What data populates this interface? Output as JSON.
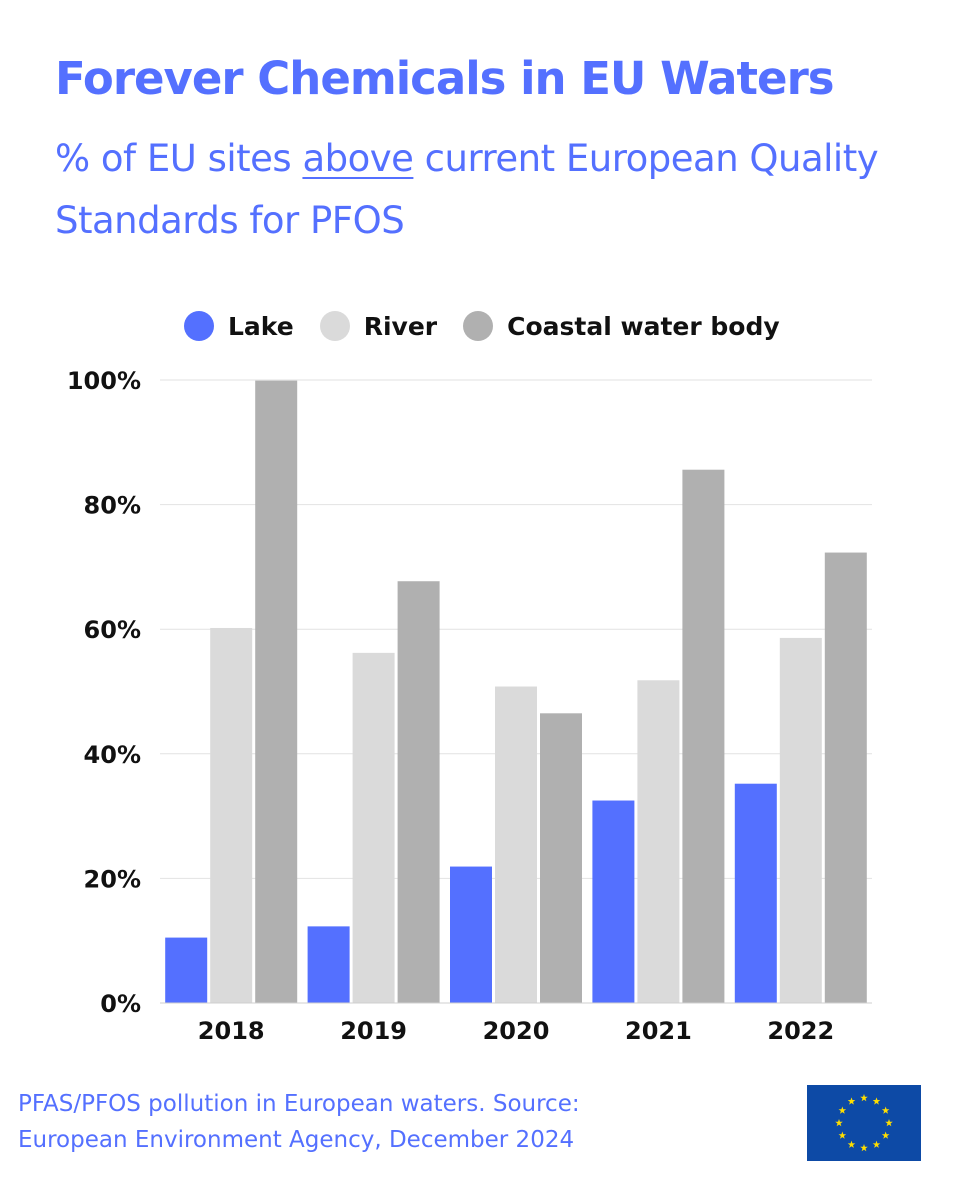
{
  "header": {
    "title": "Forever Chemicals in EU Waters",
    "subtitle_before": "% of EU sites ",
    "subtitle_emphasis": "above",
    "subtitle_after": " current European Quality Standards for PFOS"
  },
  "footer": {
    "line1": "PFAS/PFOS pollution in European waters. Source:",
    "line2": "European Environment Agency, December 2024"
  },
  "colors": {
    "accent": "#5470ff",
    "lake": "#5470ff",
    "river": "#dadada",
    "coastal": "#b0b0b0",
    "flag_blue": "#0d4aa6",
    "flag_star": "#ffde00"
  },
  "chart_data": {
    "type": "bar",
    "categories": [
      "2018",
      "2019",
      "2020",
      "2021",
      "2022"
    ],
    "series": [
      {
        "name": "Lake",
        "values": [
          10.5,
          12.3,
          21.9,
          32.5,
          35.2
        ],
        "color": "#5470ff"
      },
      {
        "name": "River",
        "values": [
          60.2,
          56.2,
          50.8,
          51.8,
          58.6
        ],
        "color": "#dadada"
      },
      {
        "name": "Coastal water body",
        "values": [
          99.9,
          67.7,
          46.5,
          85.6,
          72.3
        ],
        "color": "#b0b0b0"
      }
    ],
    "y_ticks": [
      "0%",
      "20%",
      "40%",
      "60%",
      "80%",
      "100%"
    ],
    "y_tick_values": [
      0,
      20,
      40,
      60,
      80,
      100
    ],
    "ylim": [
      0,
      100
    ],
    "xlabel": "",
    "ylabel": "",
    "grid": true,
    "legend": "top"
  },
  "flag_icon": "eu-flag-icon"
}
